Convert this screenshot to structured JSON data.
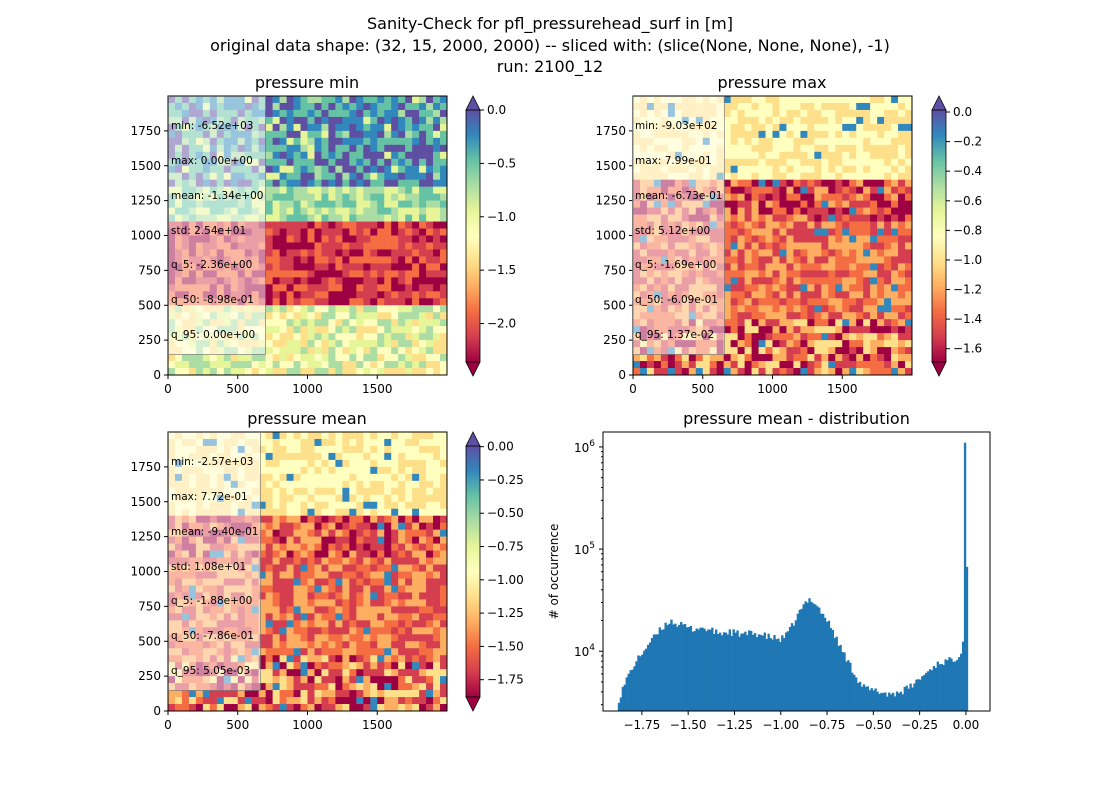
{
  "suptitle": {
    "line1": "Sanity-Check for pfl_pressurehead_surf in [m]",
    "line2": "original data shape: (32, 15, 2000, 2000) -- sliced with: (slice(None, None, None), -1)",
    "line3": "run: 2100_12"
  },
  "colormap": [
    "#9e0142",
    "#d53e4f",
    "#f46d43",
    "#fdae61",
    "#fee08b",
    "#ffffbf",
    "#e6f598",
    "#abdda4",
    "#66c2a5",
    "#3288bd",
    "#5e4fa2"
  ],
  "chart_data": [
    {
      "type": "heatmap",
      "title": "pressure min",
      "xlim": [
        0,
        2000
      ],
      "ylim": [
        0,
        2000
      ],
      "xticks": [
        "0",
        "500",
        "1000",
        "1500"
      ],
      "yticks": [
        "0",
        "250",
        "500",
        "750",
        "1000",
        "1250",
        "1500",
        "1750"
      ],
      "colorbar": {
        "vmin": -2.36,
        "vmax": 0.0,
        "extend": "both",
        "ticks": [
          {
            "v": 0.0,
            "label": "0.0"
          },
          {
            "v": -0.5,
            "label": "−0.5"
          },
          {
            "v": -1.0,
            "label": "−1.0"
          },
          {
            "v": -1.5,
            "label": "−1.5"
          },
          {
            "v": -2.0,
            "label": "−2.0"
          }
        ]
      },
      "stats": [
        "min: -6.52e+03",
        "max: 0.00e+00",
        "mean: -1.34e+00",
        "std: 2.54e+01",
        "q_5: -2.36e+00",
        "q_50: -8.98e-01",
        "q_95: 0.00e+00"
      ]
    },
    {
      "type": "heatmap",
      "title": "pressure max",
      "xlim": [
        0,
        2000
      ],
      "ylim": [
        0,
        2000
      ],
      "xticks": [
        "0",
        "500",
        "1000",
        "1500"
      ],
      "yticks": [
        "0",
        "250",
        "500",
        "750",
        "1000",
        "1250",
        "1500",
        "1750"
      ],
      "colorbar": {
        "vmin": -1.69,
        "vmax": 0.0137,
        "extend": "both",
        "ticks": [
          {
            "v": 0.0,
            "label": "0.0"
          },
          {
            "v": -0.2,
            "label": "−0.2"
          },
          {
            "v": -0.4,
            "label": "−0.4"
          },
          {
            "v": -0.6,
            "label": "−0.6"
          },
          {
            "v": -0.8,
            "label": "−0.8"
          },
          {
            "v": -1.0,
            "label": "−1.0"
          },
          {
            "v": -1.2,
            "label": "−1.2"
          },
          {
            "v": -1.4,
            "label": "−1.4"
          },
          {
            "v": -1.6,
            "label": "−1.6"
          }
        ]
      },
      "stats": [
        "min: -9.03e+02",
        "max: 7.99e-01",
        "mean: -6.73e-01",
        "std: 5.12e+00",
        "q_5: -1.69e+00",
        "q_50: -6.09e-01",
        "q_95: 1.37e-02"
      ]
    },
    {
      "type": "heatmap",
      "title": "pressure mean",
      "xlim": [
        0,
        2000
      ],
      "ylim": [
        0,
        2000
      ],
      "xticks": [
        "0",
        "500",
        "1000",
        "1500"
      ],
      "yticks": [
        "0",
        "250",
        "500",
        "750",
        "1000",
        "1250",
        "1500",
        "1750"
      ],
      "colorbar": {
        "vmin": -1.88,
        "vmax": 0.00505,
        "extend": "both",
        "ticks": [
          {
            "v": 0.0,
            "label": "0.00"
          },
          {
            "v": -0.25,
            "label": "−0.25"
          },
          {
            "v": -0.5,
            "label": "−0.50"
          },
          {
            "v": -0.75,
            "label": "−0.75"
          },
          {
            "v": -1.0,
            "label": "−1.00"
          },
          {
            "v": -1.25,
            "label": "−1.25"
          },
          {
            "v": -1.5,
            "label": "−1.50"
          },
          {
            "v": -1.75,
            "label": "−1.75"
          }
        ]
      },
      "stats": [
        "min: -2.57e+03",
        "max: 7.72e-01",
        "mean: -9.40e-01",
        "std: 1.08e+01",
        "q_5: -1.88e+00",
        "q_50: -7.86e-01",
        "q_95: 5.05e-03"
      ]
    },
    {
      "type": "bar",
      "title": "pressure mean - distribution",
      "ylabel": "# of occurrence",
      "yscale": "log",
      "xlim": [
        -1.96,
        0.13
      ],
      "ylim": [
        2600,
        1400000
      ],
      "xticks": [
        {
          "v": -1.75,
          "label": "−1.75"
        },
        {
          "v": -1.5,
          "label": "−1.50"
        },
        {
          "v": -1.25,
          "label": "−1.25"
        },
        {
          "v": -1.0,
          "label": "−1.00"
        },
        {
          "v": -0.75,
          "label": "−0.75"
        },
        {
          "v": -0.5,
          "label": "−0.50"
        },
        {
          "v": -0.25,
          "label": "−0.25"
        },
        {
          "v": 0.0,
          "label": "0.00"
        }
      ],
      "yticks": [
        {
          "v": 10000,
          "label": "10",
          "exp": "4"
        },
        {
          "v": 100000,
          "label": "10",
          "exp": "5"
        },
        {
          "v": 1000000,
          "label": "10",
          "exp": "6"
        }
      ],
      "color": "#1f77b4",
      "bin_range": [
        -1.88,
        0.01
      ],
      "profile": [
        [
          -1.88,
          3200
        ],
        [
          -1.86,
          4000
        ],
        [
          -1.83,
          5500
        ],
        [
          -1.8,
          7000
        ],
        [
          -1.76,
          9000
        ],
        [
          -1.72,
          11500
        ],
        [
          -1.68,
          14000
        ],
        [
          -1.64,
          17000
        ],
        [
          -1.6,
          20000
        ],
        [
          -1.56,
          18500
        ],
        [
          -1.52,
          17500
        ],
        [
          -1.48,
          16500
        ],
        [
          -1.44,
          17000
        ],
        [
          -1.4,
          16500
        ],
        [
          -1.36,
          15500
        ],
        [
          -1.32,
          15000
        ],
        [
          -1.28,
          15500
        ],
        [
          -1.24,
          15000
        ],
        [
          -1.2,
          14500
        ],
        [
          -1.16,
          15000
        ],
        [
          -1.12,
          14800
        ],
        [
          -1.08,
          14000
        ],
        [
          -1.04,
          13500
        ],
        [
          -1.0,
          13000
        ],
        [
          -0.96,
          15000
        ],
        [
          -0.93,
          19000
        ],
        [
          -0.9,
          24000
        ],
        [
          -0.87,
          29000
        ],
        [
          -0.84,
          33000
        ],
        [
          -0.81,
          29000
        ],
        [
          -0.78,
          24000
        ],
        [
          -0.75,
          20000
        ],
        [
          -0.72,
          16000
        ],
        [
          -0.69,
          12000
        ],
        [
          -0.66,
          9500
        ],
        [
          -0.63,
          7500
        ],
        [
          -0.6,
          6000
        ],
        [
          -0.57,
          4800
        ],
        [
          -0.54,
          4300
        ],
        [
          -0.5,
          4100
        ],
        [
          -0.46,
          4000
        ],
        [
          -0.42,
          3800
        ],
        [
          -0.38,
          3900
        ],
        [
          -0.34,
          4100
        ],
        [
          -0.3,
          4500
        ],
        [
          -0.26,
          5200
        ],
        [
          -0.22,
          6000
        ],
        [
          -0.18,
          7000
        ],
        [
          -0.14,
          7800
        ],
        [
          -0.1,
          8000
        ],
        [
          -0.06,
          8500
        ],
        [
          -0.03,
          9500
        ],
        [
          -0.015,
          13000
        ],
        [
          -0.005,
          22000
        ],
        [
          0.0,
          1100000
        ],
        [
          0.01,
          3000
        ]
      ]
    }
  ]
}
